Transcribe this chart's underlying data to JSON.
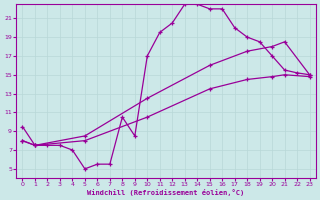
{
  "xlabel": "Windchill (Refroidissement éolien,°C)",
  "xlim": [
    -0.5,
    23.5
  ],
  "ylim": [
    4.0,
    22.5
  ],
  "xticks": [
    0,
    1,
    2,
    3,
    4,
    5,
    6,
    7,
    8,
    9,
    10,
    11,
    12,
    13,
    14,
    15,
    16,
    17,
    18,
    19,
    20,
    21,
    22,
    23
  ],
  "yticks": [
    5,
    7,
    9,
    11,
    13,
    15,
    17,
    19,
    21
  ],
  "bg_color": "#cce8e8",
  "line_color": "#990099",
  "grid_color": "#b8d8d8",
  "line1_x": [
    0,
    1,
    2,
    3,
    4,
    5,
    6,
    7,
    8,
    9,
    10,
    11,
    12,
    13,
    14,
    15,
    16,
    17,
    18,
    19,
    20,
    21,
    22,
    23
  ],
  "line1_y": [
    9.5,
    7.5,
    7.5,
    7.5,
    7.0,
    5.0,
    5.5,
    5.5,
    10.5,
    8.5,
    17.0,
    19.5,
    20.5,
    22.5,
    22.5,
    22.0,
    22.0,
    20.0,
    19.0,
    18.5,
    17.0,
    15.5,
    15.2,
    15.0
  ],
  "line2_x": [
    0,
    1,
    5,
    10,
    15,
    18,
    20,
    21,
    23
  ],
  "line2_y": [
    8.0,
    7.5,
    8.5,
    12.5,
    16.0,
    17.5,
    18.0,
    18.5,
    15.0
  ],
  "line3_x": [
    0,
    1,
    5,
    10,
    15,
    18,
    20,
    21,
    23
  ],
  "line3_y": [
    8.0,
    7.5,
    8.0,
    10.5,
    13.5,
    14.5,
    14.8,
    15.0,
    14.8
  ]
}
